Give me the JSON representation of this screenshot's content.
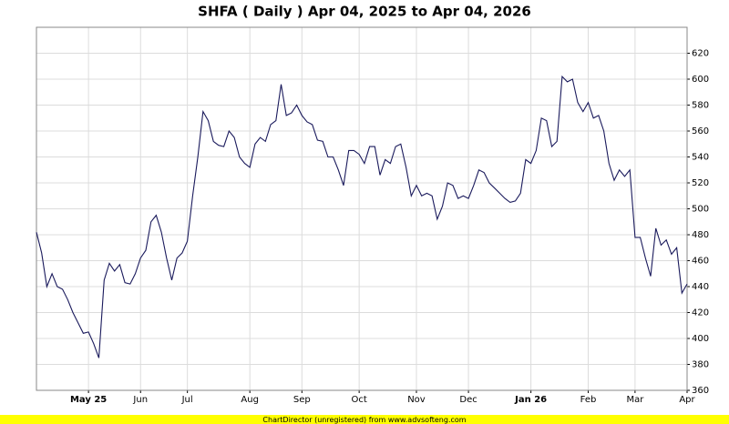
{
  "chart_data": {
    "type": "line",
    "title": "SHFA ( Daily ) Apr 04, 2025 to Apr 04, 2026",
    "footer": "ChartDirector (unregistered) from www.advsofteng.com",
    "categories": [
      null,
      null,
      null,
      null,
      null,
      null,
      null,
      null,
      null,
      null,
      "May 25",
      null,
      null,
      null,
      null,
      null,
      null,
      null,
      null,
      null,
      "Jun",
      null,
      null,
      null,
      null,
      null,
      null,
      null,
      null,
      "Jul",
      null,
      null,
      null,
      null,
      null,
      null,
      null,
      null,
      null,
      null,
      null,
      "Aug",
      null,
      null,
      null,
      null,
      null,
      null,
      null,
      null,
      null,
      "Sep",
      null,
      null,
      null,
      null,
      null,
      null,
      null,
      null,
      null,
      null,
      "Oct",
      null,
      null,
      null,
      null,
      null,
      null,
      null,
      null,
      null,
      null,
      "Nov",
      null,
      null,
      null,
      null,
      null,
      null,
      null,
      null,
      null,
      "Dec",
      null,
      null,
      null,
      null,
      null,
      null,
      null,
      null,
      null,
      null,
      null,
      "Jan 26",
      null,
      null,
      null,
      null,
      null,
      null,
      null,
      null,
      null,
      null,
      "Feb",
      null,
      null,
      null,
      null,
      null,
      null,
      null,
      null,
      "Mar",
      null,
      null,
      null,
      null,
      null,
      null,
      null,
      null,
      null,
      "Apr"
    ],
    "series": [
      {
        "name": "SHFA",
        "color": "#1a1a5c",
        "values": [
          482,
          466,
          440,
          450,
          440,
          438,
          430,
          420,
          412,
          404,
          405,
          396,
          385,
          445,
          458,
          452,
          457,
          443,
          442,
          450,
          462,
          468,
          490,
          495,
          482,
          462,
          445,
          462,
          466,
          475,
          510,
          540,
          575,
          568,
          552,
          549,
          548,
          560,
          555,
          540,
          535,
          532,
          550,
          555,
          552,
          565,
          568,
          596,
          572,
          574,
          580,
          572,
          567,
          565,
          553,
          552,
          540,
          540,
          530,
          518,
          545,
          545,
          542,
          535,
          548,
          548,
          526,
          538,
          535,
          548,
          550,
          532,
          510,
          518,
          510,
          512,
          510,
          492,
          502,
          520,
          518,
          508,
          510,
          508,
          518,
          530,
          528,
          520,
          516,
          512,
          508,
          505,
          506,
          512,
          538,
          535,
          545,
          570,
          568,
          548,
          552,
          602,
          598,
          600,
          582,
          575,
          582,
          570,
          572,
          560,
          535,
          522,
          530,
          525,
          530,
          478,
          478,
          462,
          448,
          485,
          472,
          476,
          465,
          470,
          435,
          442
        ]
      }
    ],
    "ylim": [
      360,
      640
    ],
    "yticks": [
      360,
      380,
      400,
      420,
      440,
      460,
      480,
      500,
      520,
      540,
      560,
      580,
      600,
      620
    ],
    "grid": true
  }
}
